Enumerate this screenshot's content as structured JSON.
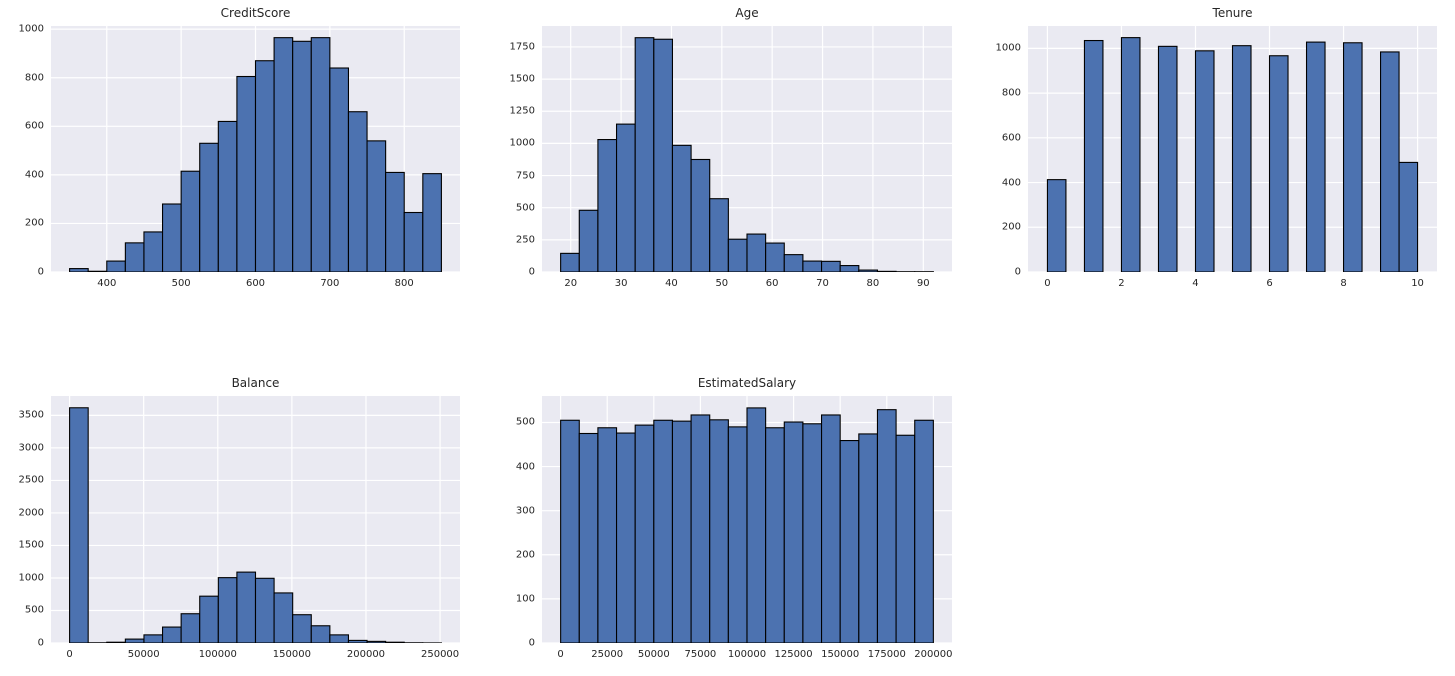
{
  "figure": {
    "background": "#ffffff"
  },
  "style": {
    "axes_background": "#eaeaf2",
    "grid_color": "#ffffff",
    "bar_fill": "#4c72b0",
    "bar_edge": "#000000",
    "text_color": "#262626"
  },
  "chart_data": [
    {
      "type": "bar",
      "subtype": "histogram",
      "title": "CreditScore",
      "bin_start": 350,
      "bin_width": 25,
      "values": [
        14,
        3,
        45,
        120,
        165,
        280,
        415,
        530,
        620,
        805,
        870,
        965,
        950,
        965,
        840,
        660,
        540,
        410,
        245,
        405
      ],
      "xlim": [
        325,
        875
      ],
      "ylim": [
        0,
        1013
      ],
      "xticks": [
        400,
        500,
        600,
        700,
        800
      ],
      "yticks": [
        0,
        200,
        400,
        600,
        800,
        1000
      ],
      "grid": true,
      "legend": false
    },
    {
      "type": "bar",
      "subtype": "histogram",
      "title": "Age",
      "bin_start": 18,
      "bin_width": 3.7,
      "values": [
        145,
        480,
        1030,
        1150,
        1822,
        1810,
        985,
        875,
        570,
        255,
        295,
        225,
        135,
        85,
        83,
        50,
        15,
        5,
        2,
        2
      ],
      "xlim": [
        14.3,
        95.7
      ],
      "ylim": [
        0,
        1913
      ],
      "xticks": [
        20,
        30,
        40,
        50,
        60,
        70,
        80,
        90
      ],
      "yticks": [
        0,
        250,
        500,
        750,
        1000,
        1250,
        1500,
        1750
      ],
      "grid": true,
      "legend": false
    },
    {
      "type": "bar",
      "subtype": "histogram",
      "title": "Tenure",
      "bin_start": 0,
      "bin_width": 0.5,
      "values": [
        413,
        0,
        1035,
        0,
        1048,
        0,
        1009,
        0,
        989,
        0,
        1012,
        0,
        967,
        0,
        1028,
        0,
        1025,
        0,
        984,
        490
      ],
      "xlim": [
        -0.525,
        10.525
      ],
      "ylim": [
        0,
        1100
      ],
      "xticks": [
        0,
        2,
        4,
        6,
        8,
        10
      ],
      "yticks": [
        0,
        200,
        400,
        600,
        800,
        1000
      ],
      "grid": true,
      "legend": false
    },
    {
      "type": "bar",
      "subtype": "histogram",
      "title": "Balance",
      "bin_start": 0,
      "bin_width": 12544.9,
      "values": [
        3617,
        3,
        12,
        60,
        125,
        245,
        450,
        720,
        1005,
        1090,
        995,
        770,
        435,
        265,
        125,
        40,
        25,
        12,
        3,
        1
      ],
      "xlim": [
        -12544.9,
        263442.9
      ],
      "ylim": [
        0,
        3798
      ],
      "xticks": [
        0,
        50000,
        100000,
        150000,
        200000,
        250000
      ],
      "yticks": [
        0,
        500,
        1000,
        1500,
        2000,
        2500,
        3000,
        3500
      ],
      "grid": true,
      "legend": false
    },
    {
      "type": "bar",
      "subtype": "histogram",
      "title": "EstimatedSalary",
      "bin_start": 11.58,
      "bin_width": 9999.045,
      "values": [
        505,
        475,
        488,
        476,
        494,
        505,
        503,
        517,
        506,
        490,
        533,
        488,
        501,
        497,
        517,
        459,
        474,
        529,
        471,
        505
      ],
      "xlim": [
        -9987.47,
        209991.53
      ],
      "ylim": [
        0,
        560
      ],
      "xticks": [
        0,
        25000,
        50000,
        75000,
        100000,
        125000,
        150000,
        175000,
        200000
      ],
      "yticks": [
        0,
        100,
        200,
        300,
        400,
        500
      ],
      "grid": true,
      "legend": false
    }
  ]
}
